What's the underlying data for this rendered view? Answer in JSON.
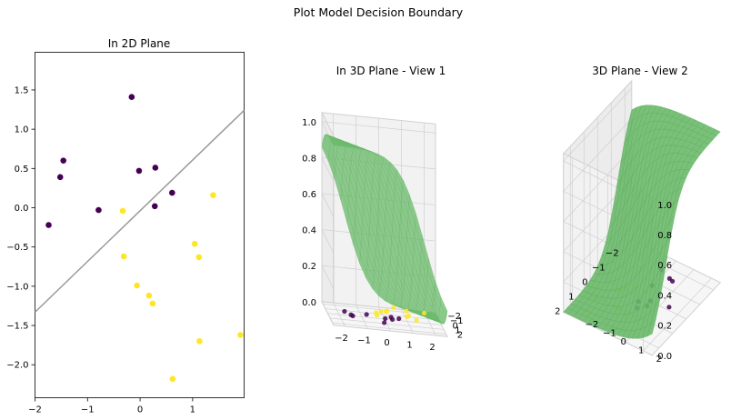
{
  "figure": {
    "suptitle": "Plot Model Decision Boundary"
  },
  "colors": {
    "class0": "#440154",
    "class1": "#fde725",
    "line": "#999999",
    "surface": "#6ab96a",
    "surfaceEdge": "#5aa85a",
    "grid": "#d0d0d0",
    "pane": "#f2f2f2"
  },
  "chart_data": [
    {
      "type": "scatter",
      "title": "In 2D Plane",
      "xlim": [
        -2,
        1.98
      ],
      "ylim": [
        -2.42,
        1.98
      ],
      "xticks": [
        -2,
        -1,
        0,
        1
      ],
      "yticks": [
        1.5,
        1.0,
        0.5,
        0.0,
        -0.5,
        -1.0,
        -1.5,
        -2.0
      ],
      "xtick_labels": [
        "−2",
        "−1",
        "0",
        "1"
      ],
      "ytick_labels": [
        "1.5",
        "1.0",
        "0.5",
        "0.0",
        "−0.5",
        "−1.0",
        "−1.5",
        "−2.0"
      ],
      "series": [
        {
          "class": 0,
          "points": [
            [
              -1.74,
              -0.22
            ],
            [
              -1.52,
              0.39
            ],
            [
              -1.46,
              0.6
            ],
            [
              -0.79,
              -0.03
            ],
            [
              -0.16,
              1.41
            ],
            [
              -0.02,
              0.47
            ],
            [
              0.29,
              0.51
            ],
            [
              0.28,
              0.02
            ],
            [
              0.61,
              0.19
            ]
          ]
        },
        {
          "class": 1,
          "points": [
            [
              -0.33,
              -0.04
            ],
            [
              -0.31,
              -0.62
            ],
            [
              -0.06,
              -0.99
            ],
            [
              0.17,
              -1.12
            ],
            [
              0.24,
              -1.22
            ],
            [
              1.04,
              -0.46
            ],
            [
              1.12,
              -0.63
            ],
            [
              1.39,
              0.16
            ],
            [
              1.13,
              -1.7
            ],
            [
              0.62,
              -2.18
            ],
            [
              1.91,
              -1.62
            ]
          ]
        }
      ],
      "decision_boundary": {
        "x": [
          -2,
          1.98
        ],
        "y": [
          -1.33,
          1.24
        ]
      }
    },
    {
      "type": "surface3d",
      "title": "In 3D Plane - View 1",
      "zticks": [
        0.0,
        0.2,
        0.4,
        0.6,
        0.8,
        1.0
      ],
      "ztick_labels": [
        "0.0",
        "0.2",
        "0.4",
        "0.6",
        "0.8",
        "1.0"
      ],
      "xtick_labels": [
        "−2",
        "−1",
        "0",
        "1",
        "2"
      ],
      "ytick_labels": [
        "−2",
        "−1",
        "0",
        "1",
        "2"
      ]
    },
    {
      "type": "surface3d",
      "title": "3D Plane - View 2",
      "zticks": [
        0.0,
        0.2,
        0.4,
        0.6,
        0.8,
        1.0
      ],
      "ztick_labels": [
        "0.0",
        "0.2",
        "0.4",
        "0.6",
        "0.8",
        "1.0"
      ],
      "xtick_labels": [
        "−2",
        "−1",
        "0",
        "1",
        "2"
      ],
      "ytick_labels": [
        "−2",
        "−1",
        "0",
        "1",
        "2"
      ]
    }
  ]
}
